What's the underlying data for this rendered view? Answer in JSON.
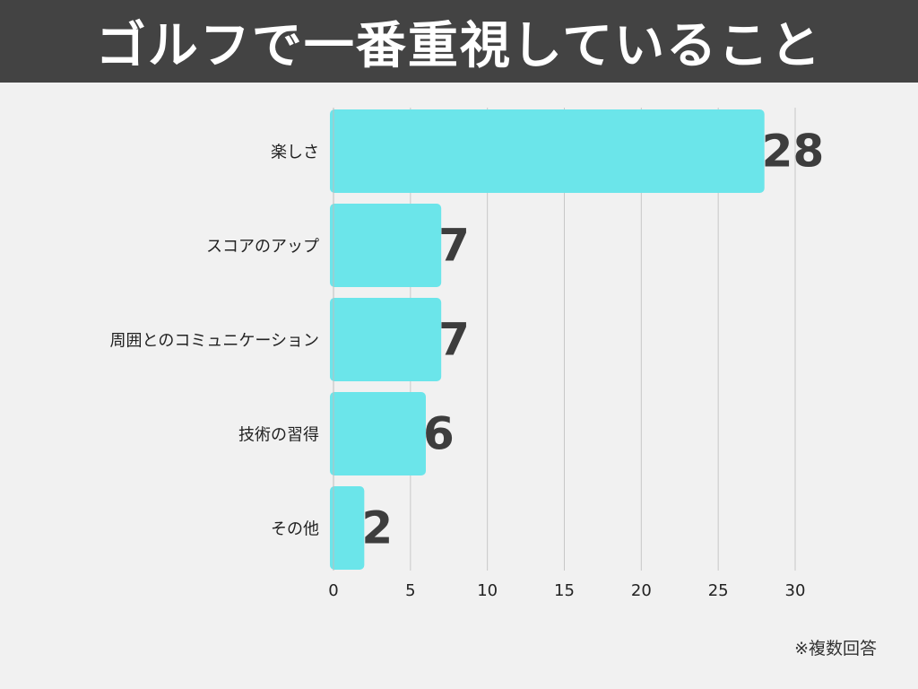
{
  "header": {
    "title": "ゴルフで一番重視していること"
  },
  "footnote": "※複数回答",
  "colors": {
    "header_bg": "#434343",
    "bar": "#6be5ea",
    "value_label": "#3d3d3d",
    "grid": "#c8c8c8",
    "background": "#f1f1f1"
  },
  "chart_data": {
    "type": "bar",
    "orientation": "horizontal",
    "categories": [
      "楽しさ",
      "スコアのアップ",
      "周囲とのコミュニケーション",
      "技術の習得",
      "その他"
    ],
    "values": [
      28,
      7,
      7,
      6,
      2
    ],
    "value_labels": [
      "28",
      "7",
      "7",
      "6",
      "2"
    ],
    "xlim": [
      0,
      30
    ],
    "xticks": [
      0,
      5,
      10,
      15,
      20,
      25,
      30
    ],
    "xtick_labels": [
      "0",
      "5",
      "10",
      "15",
      "20",
      "25",
      "30"
    ],
    "grid": true
  }
}
